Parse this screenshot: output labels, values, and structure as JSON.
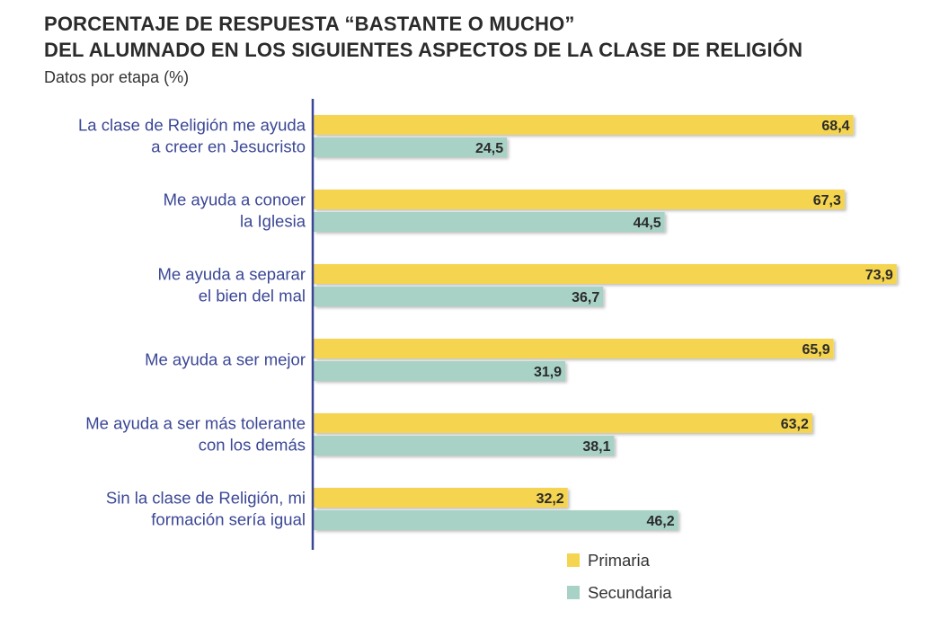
{
  "chart_data": {
    "type": "bar",
    "orientation": "horizontal",
    "title": "PORCENTAJE DE RESPUESTA “BASTANTE O MUCHO”",
    "title_line2": "DEL ALUMNADO EN LOS SIGUIENTES ASPECTOS DE LA CLASE DE RELIGIÓN",
    "subtitle": "Datos por etapa (%)",
    "xlabel": "",
    "ylabel": "",
    "xlim": [
      0,
      75
    ],
    "grid": false,
    "legend_position": "bottom-right",
    "categories": [
      [
        "La clase de Religión me ayuda",
        "a creer en Jesucristo"
      ],
      [
        "Me ayuda a conoer",
        "la Iglesia"
      ],
      [
        "Me ayuda a separar",
        "el bien del mal"
      ],
      [
        "Me ayuda a ser mejor"
      ],
      [
        "Me ayuda a ser más tolerante",
        "con los demás"
      ],
      [
        "Sin la clase de Religión, mi",
        "formación sería igual"
      ]
    ],
    "series": [
      {
        "name": "Primaria",
        "color": "#f5d44f",
        "values": [
          68.4,
          67.3,
          73.9,
          65.9,
          63.2,
          32.2
        ],
        "labels": [
          "68,4",
          "67,3",
          "73,9",
          "65,9",
          "63,2",
          "32,2"
        ]
      },
      {
        "name": "Secundaria",
        "color": "#a8d2c6",
        "values": [
          24.5,
          44.5,
          36.7,
          31.9,
          38.1,
          46.2
        ],
        "labels": [
          "24,5",
          "44,5",
          "36,7",
          "31,9",
          "38,1",
          "46,2"
        ]
      }
    ],
    "axis_color": "#3b4796"
  }
}
